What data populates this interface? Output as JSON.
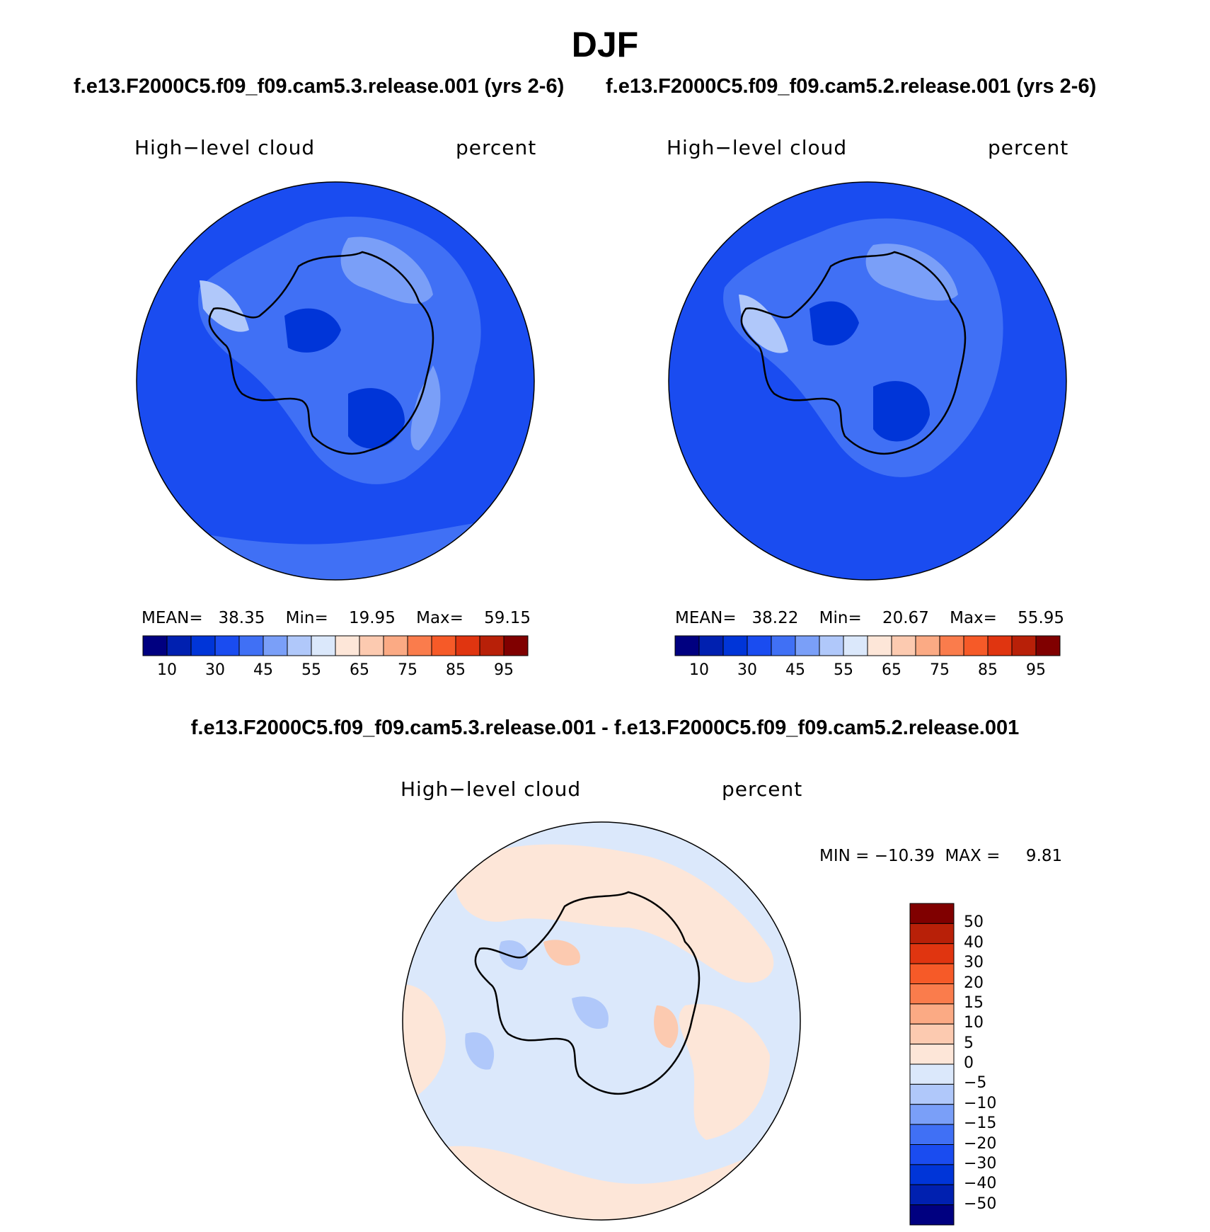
{
  "figure": {
    "title": "DJF",
    "subtitle_left": "f.e13.F2000C5.f09_f09.cam5.3.release.001 (yrs 2-6)",
    "subtitle_right": "f.e13.F2000C5.f09_f09.cam5.2.release.001 (yrs 2-6)",
    "diff_title": "f.e13.F2000C5.f09_f09.cam5.3.release.001 - f.e13.F2000C5.f09_f09.cam5.2.release.001"
  },
  "panels": [
    {
      "variable": "High−level cloud",
      "units": "percent",
      "stats": {
        "mean_label": "MEAN=",
        "mean": "38.35",
        "min_label": "Min=",
        "min": "19.95",
        "max_label": "Max=",
        "max": "59.15"
      }
    },
    {
      "variable": "High−level cloud",
      "units": "percent",
      "stats": {
        "mean_label": "MEAN=",
        "mean": "38.22",
        "min_label": "Min=",
        "min": "20.67",
        "max_label": "Max=",
        "max": "55.95"
      }
    }
  ],
  "diff_panel": {
    "variable": "High−level cloud",
    "units": "percent",
    "stats_text": "MIN = −10.39  MAX =     9.81"
  },
  "colorbar_abs": {
    "colors": [
      "#000080",
      "#0020b0",
      "#0035d8",
      "#1a4cf0",
      "#4070f5",
      "#7a9ff8",
      "#b0c8fa",
      "#dbe8fb",
      "#fde6d8",
      "#fccab0",
      "#fbaa84",
      "#fa7c4c",
      "#f65a28",
      "#e03510",
      "#b82008",
      "#800000"
    ],
    "labels": [
      "10",
      "30",
      "45",
      "55",
      "65",
      "75",
      "85",
      "95"
    ]
  },
  "colorbar_diff": {
    "colors": [
      "#800000",
      "#b82008",
      "#e03510",
      "#f65a28",
      "#fa7c4c",
      "#fbaa84",
      "#fccab0",
      "#fde6d8",
      "#dbe8fb",
      "#b0c8fa",
      "#7a9ff8",
      "#4070f5",
      "#1a4cf0",
      "#0035d8",
      "#0020b0",
      "#000080"
    ],
    "labels": [
      "50",
      "40",
      "30",
      "20",
      "15",
      "10",
      "5",
      "0",
      "−5",
      "−10",
      "−15",
      "−20",
      "−30",
      "−40",
      "−50"
    ]
  },
  "map_colors": {
    "ocean_base": "#1a4cf0",
    "diff_base": "#dbe8fb",
    "diff_pos": "#fde6d8",
    "coastline": "#000000"
  }
}
